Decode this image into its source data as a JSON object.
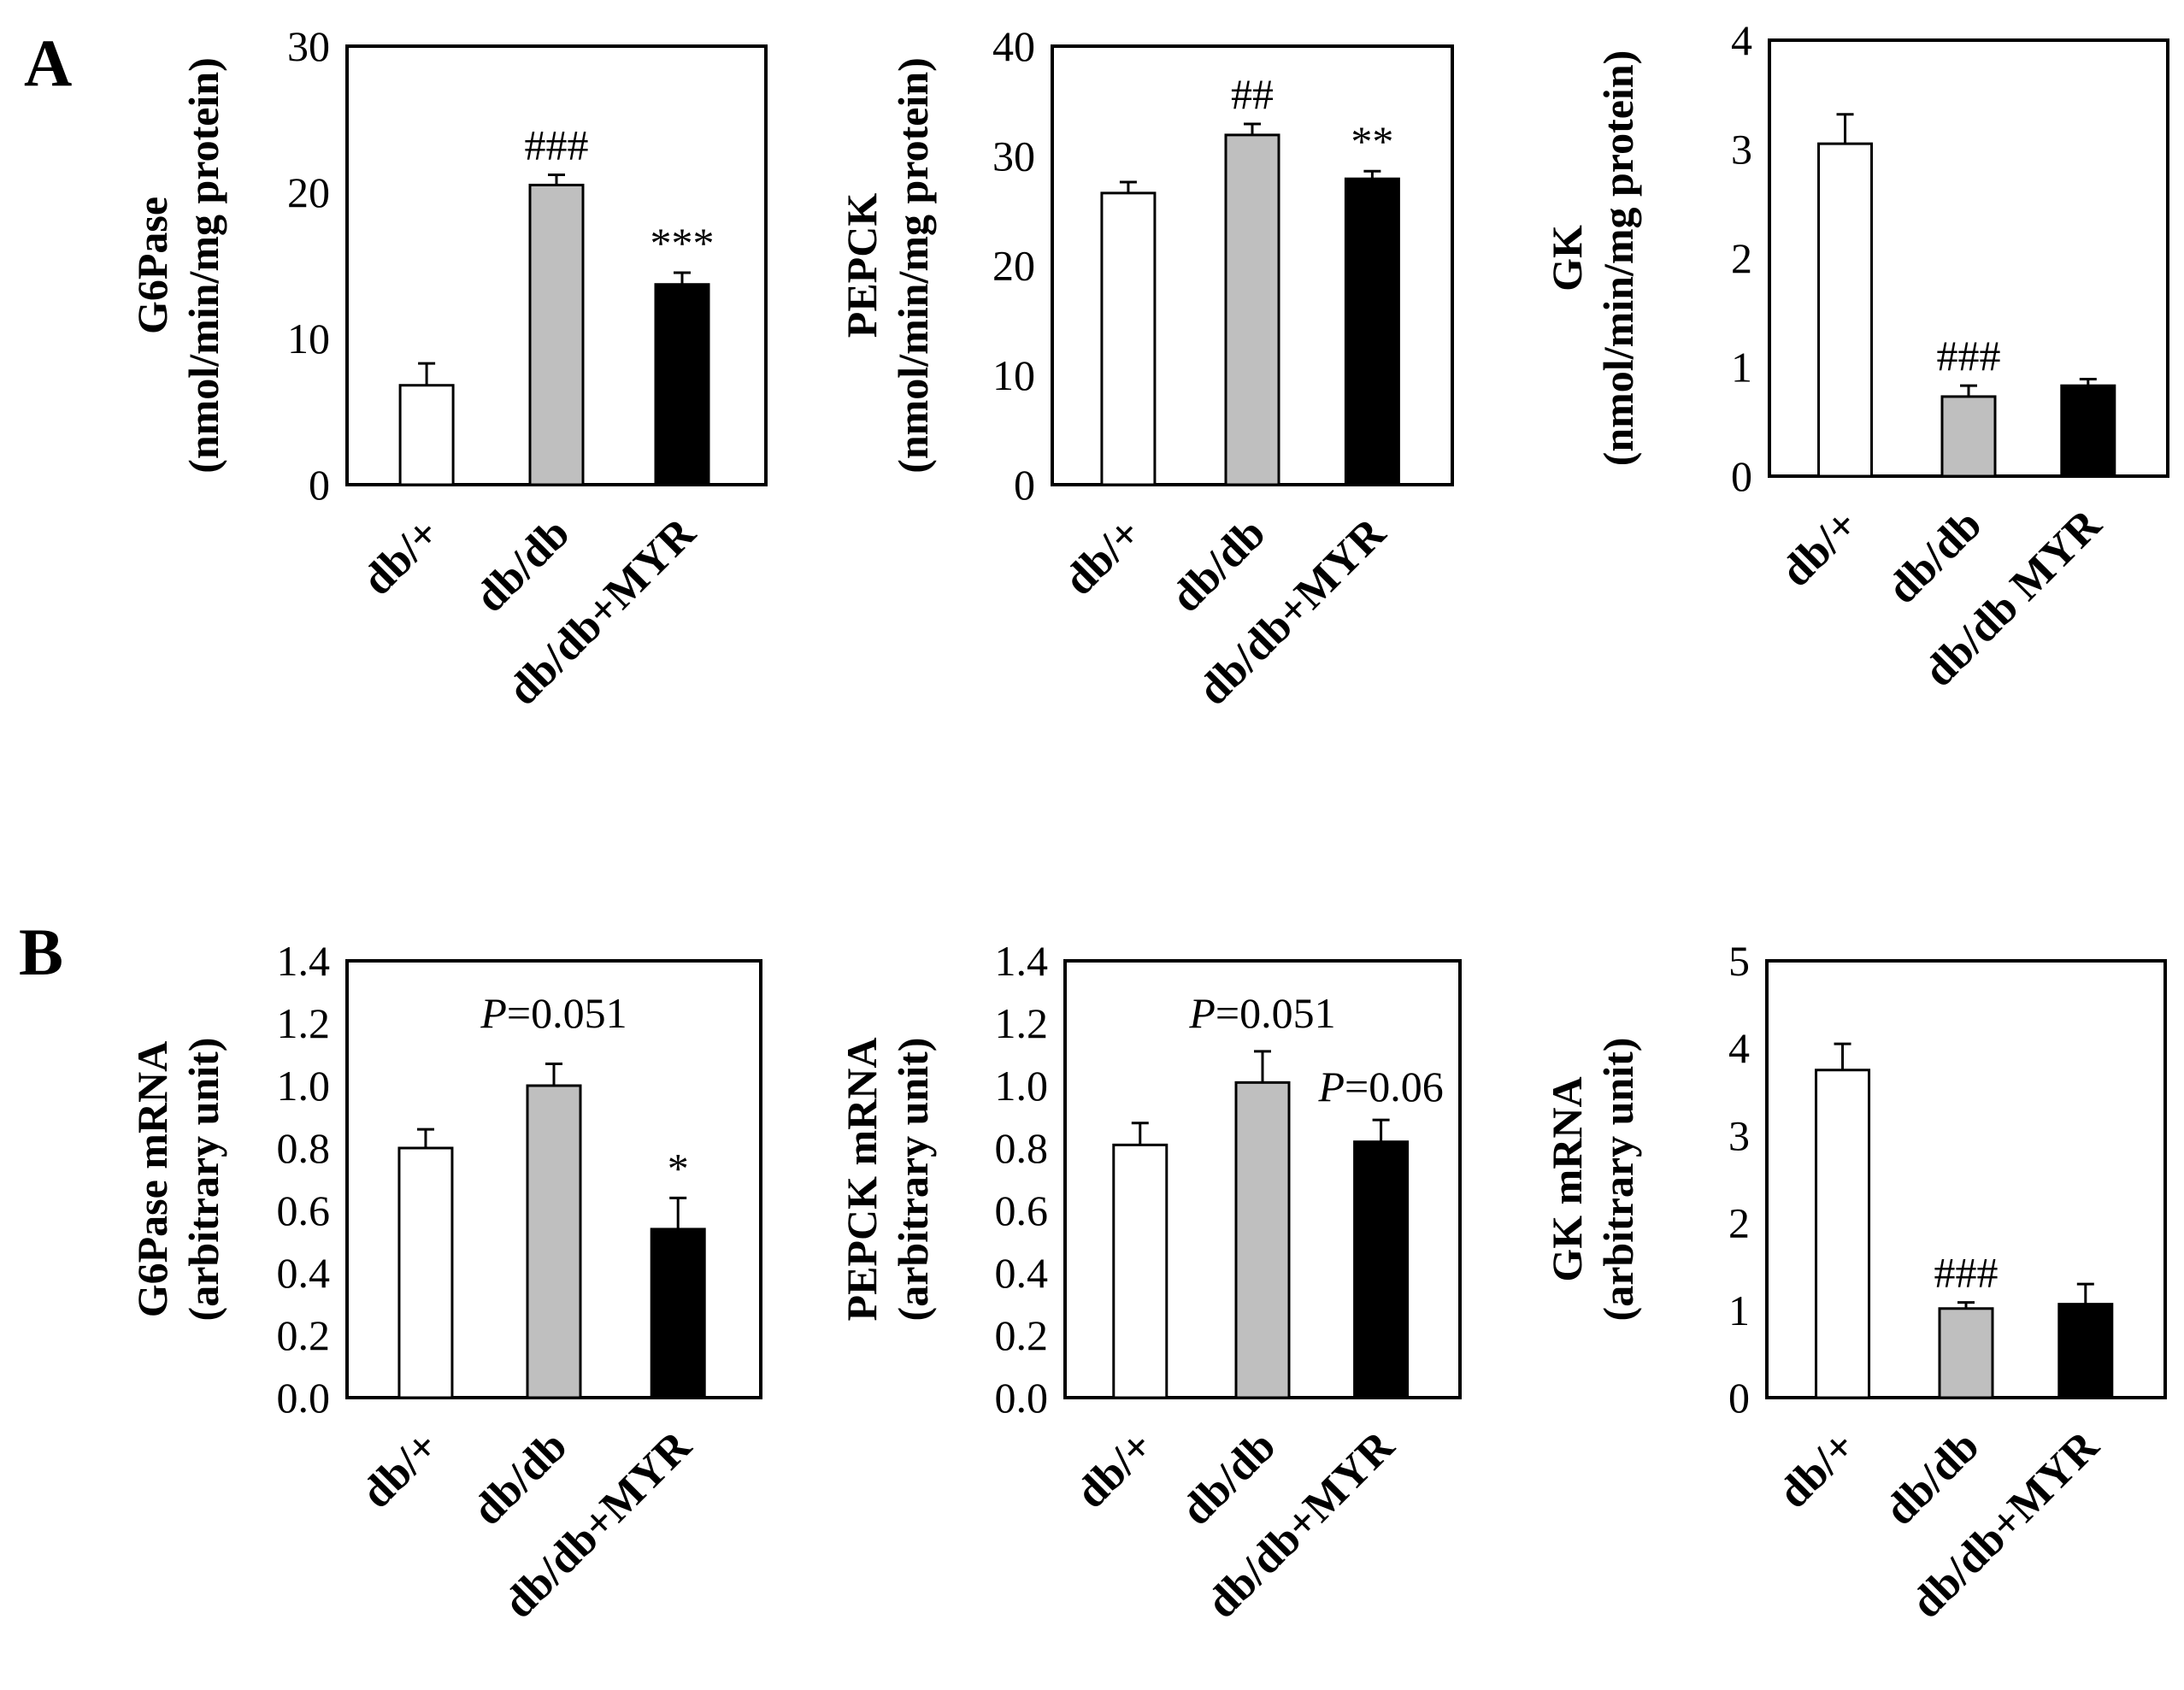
{
  "panels": {
    "A": "A",
    "B": "B"
  },
  "colors": {
    "white_bar": "#ffffff",
    "gray_bar": "#bfbfbf",
    "black_bar": "#000000"
  },
  "chart_data": [
    {
      "id": "A1",
      "panel": "A",
      "type": "bar",
      "ylabel": [
        "G6Pase",
        "(nmol/min/mg protein)"
      ],
      "categories": [
        "db/+",
        "db/db",
        "db/db+MYR"
      ],
      "values": [
        6.8,
        20.5,
        13.7
      ],
      "errors": [
        1.5,
        0.7,
        0.8
      ],
      "ylim": [
        0,
        30
      ],
      "yticks": [
        "0",
        "10",
        "20",
        "30"
      ],
      "annotations": [
        "",
        "###",
        "***"
      ]
    },
    {
      "id": "A2",
      "panel": "A",
      "type": "bar",
      "ylabel": [
        "PEPCK",
        "(nmol/min/mg protein)"
      ],
      "categories": [
        "db/+",
        "db/db",
        "db/db+MYR"
      ],
      "values": [
        26.6,
        31.9,
        27.9
      ],
      "errors": [
        1.0,
        1.0,
        0.7
      ],
      "ylim": [
        0,
        40
      ],
      "yticks": [
        "0",
        "10",
        "20",
        "30",
        "40"
      ],
      "annotations": [
        "",
        "##",
        "**"
      ]
    },
    {
      "id": "A3",
      "panel": "A",
      "type": "bar",
      "ylabel": [
        "GK",
        "(nmol/min/mg protein)"
      ],
      "categories": [
        "db/+",
        "db/db",
        "db/db MYR"
      ],
      "values": [
        3.05,
        0.73,
        0.83
      ],
      "errors": [
        0.27,
        0.1,
        0.06
      ],
      "ylim": [
        0,
        4
      ],
      "yticks": [
        "0",
        "1",
        "2",
        "3",
        "4"
      ],
      "annotations": [
        "",
        "###",
        ""
      ]
    },
    {
      "id": "B1",
      "panel": "B",
      "type": "bar",
      "ylabel": [
        "G6Pase mRNA",
        "(arbitrary unit)"
      ],
      "categories": [
        "db/+",
        "db/db",
        "db/db+MYR"
      ],
      "values": [
        0.8,
        1.0,
        0.54
      ],
      "errors": [
        0.06,
        0.07,
        0.1
      ],
      "ylim": [
        0,
        1.4
      ],
      "yticks": [
        "0.0",
        "0.2",
        "0.4",
        "0.6",
        "0.8",
        "1.0",
        "1.2",
        "1.4"
      ],
      "annotations": [
        "",
        "",
        "*"
      ],
      "pvalues": [
        {
          "label": "P",
          "text": "=0.051",
          "over": 1
        }
      ]
    },
    {
      "id": "B2",
      "panel": "B",
      "type": "bar",
      "ylabel": [
        "PEPCK mRNA",
        "(arbitrary unit)"
      ],
      "categories": [
        "db/+",
        "db/db",
        "db/db+MYR"
      ],
      "values": [
        0.81,
        1.01,
        0.82
      ],
      "errors": [
        0.07,
        0.1,
        0.07
      ],
      "ylim": [
        0,
        1.4
      ],
      "yticks": [
        "0.0",
        "0.2",
        "0.4",
        "0.6",
        "0.8",
        "1.0",
        "1.2",
        "1.4"
      ],
      "annotations": [
        "",
        "",
        ""
      ],
      "pvalues": [
        {
          "label": "P",
          "text": "=0.051",
          "over": 1
        },
        {
          "label": "P",
          "text": "=0.06",
          "over": 2
        }
      ]
    },
    {
      "id": "B3",
      "panel": "B",
      "type": "bar",
      "ylabel": [
        "GK mRNA",
        "(arbitrary unit)"
      ],
      "categories": [
        "db/+",
        "db/db",
        "db/db+MYR"
      ],
      "values": [
        3.75,
        1.02,
        1.07
      ],
      "errors": [
        0.3,
        0.07,
        0.23
      ],
      "ylim": [
        0,
        5
      ],
      "yticks": [
        "0",
        "1",
        "2",
        "3",
        "4",
        "5"
      ],
      "annotations": [
        "",
        "###",
        ""
      ]
    }
  ]
}
